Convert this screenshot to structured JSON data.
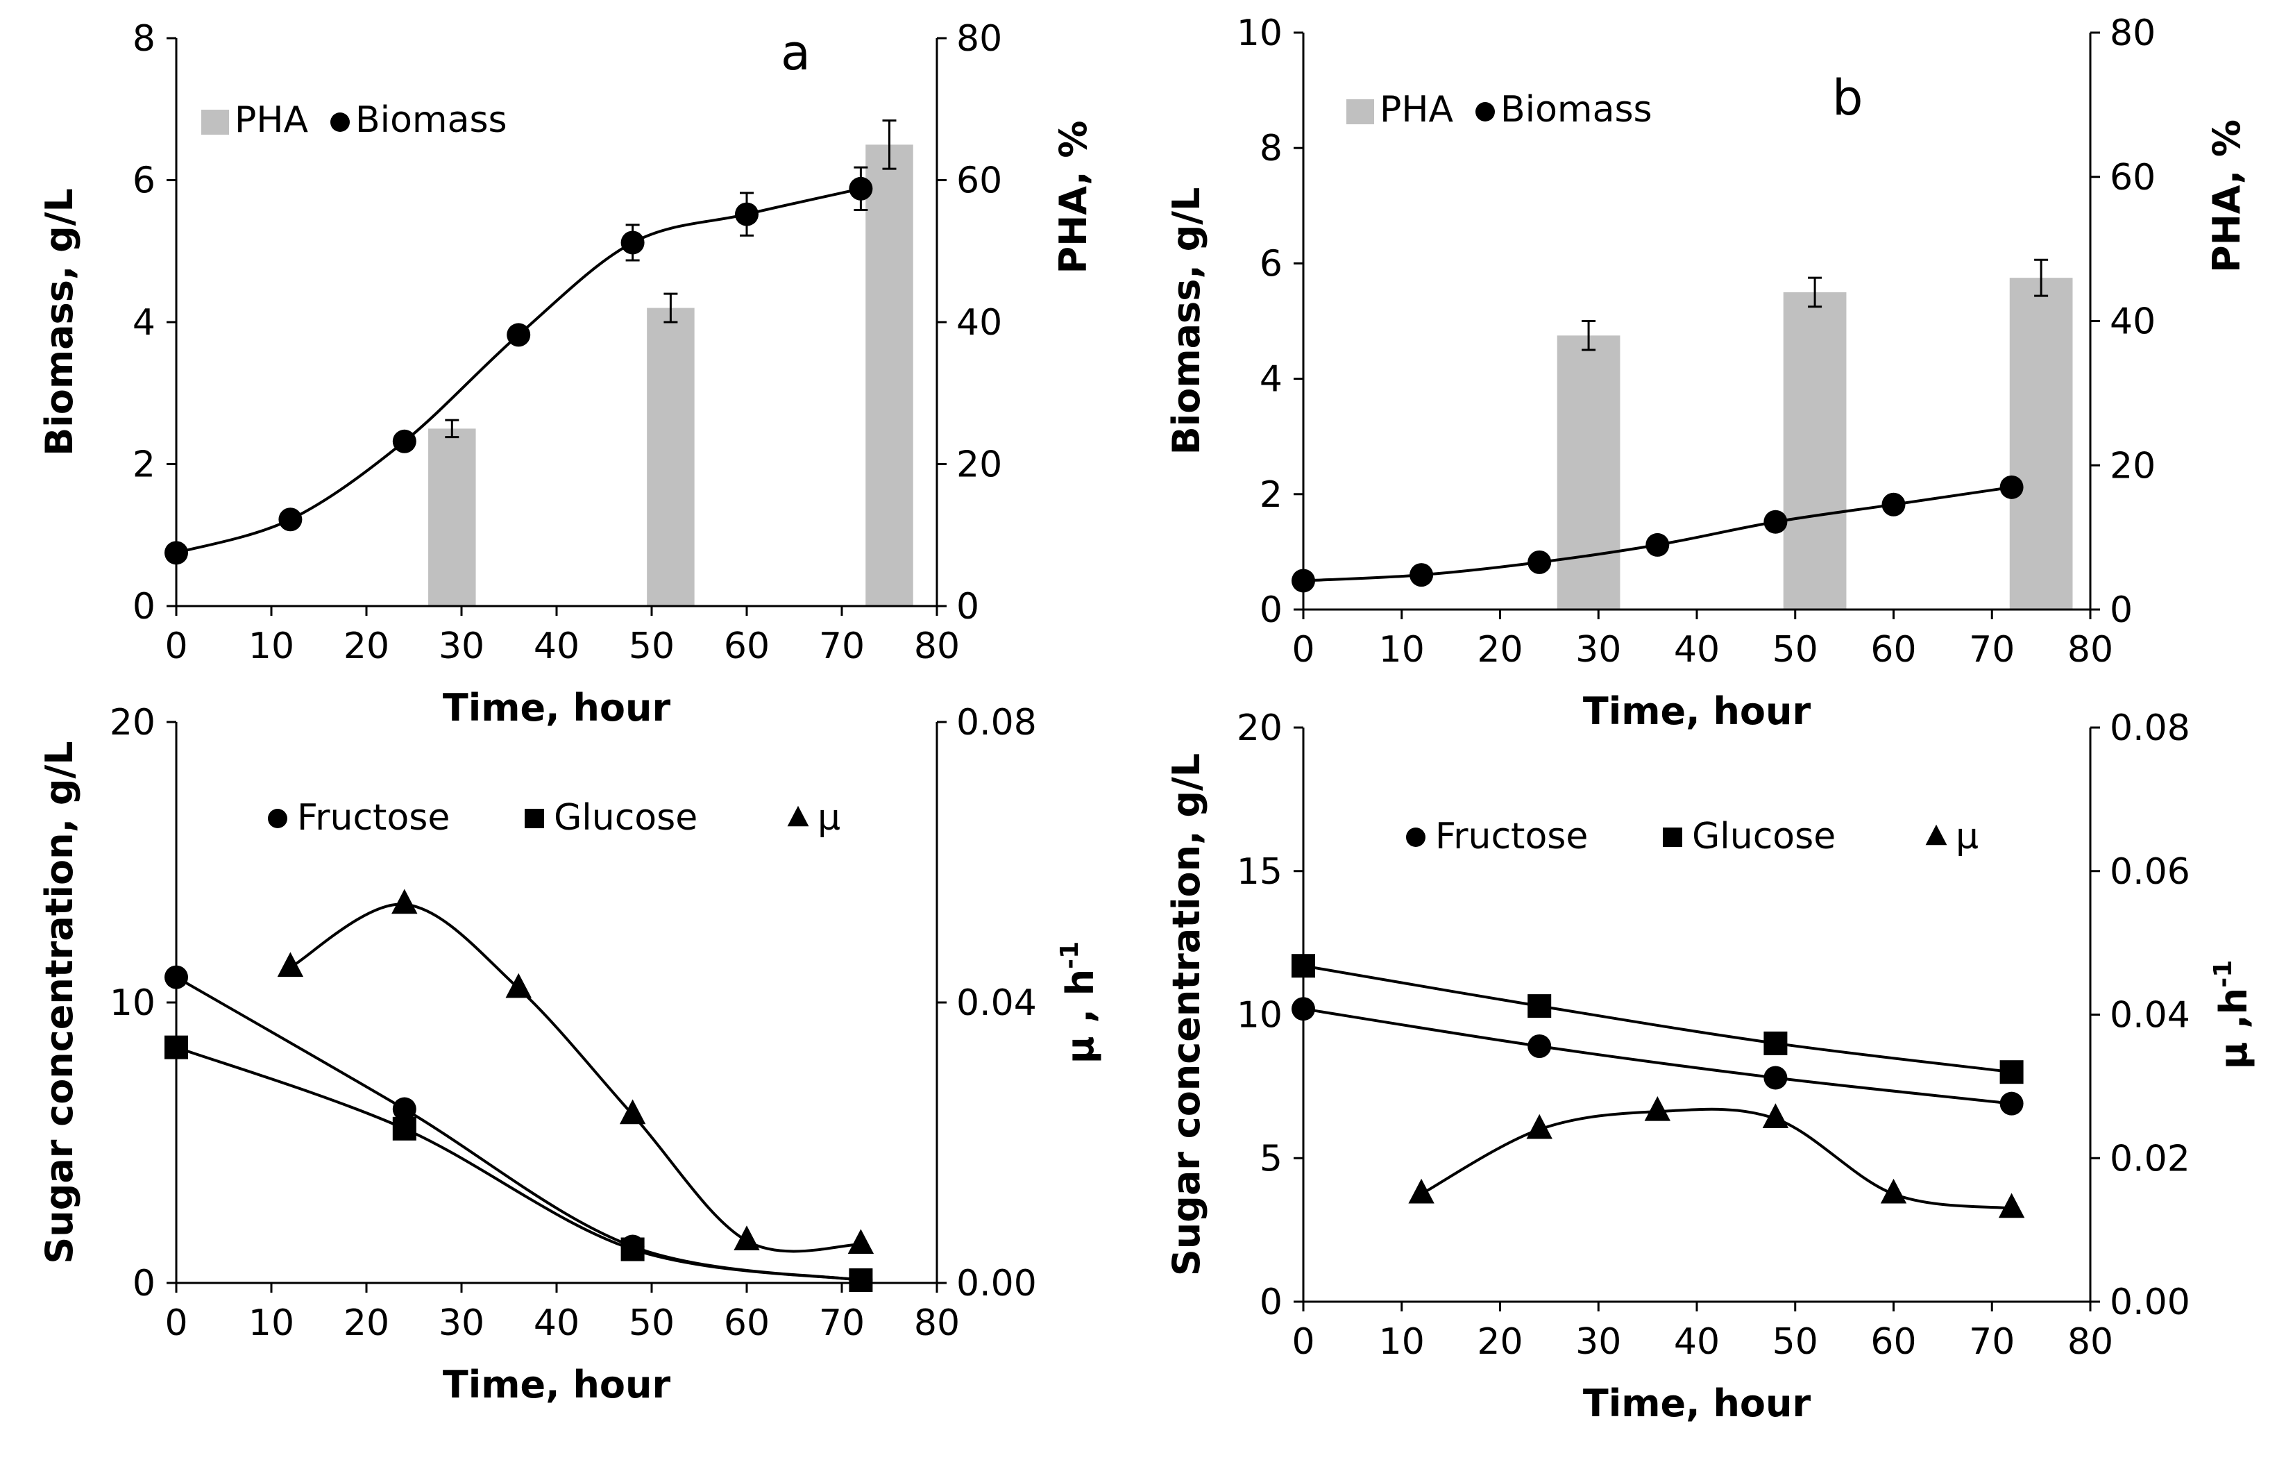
{
  "chart_data": [
    {
      "id": "a-top",
      "type": "bar+line",
      "panel_letter": "a",
      "xlabel": "Time, hour",
      "ylabel": "Biomass, g/L",
      "y2label": "PHA, %",
      "xlim": [
        0,
        80
      ],
      "ylim": [
        0,
        8
      ],
      "y2lim": [
        0,
        80
      ],
      "x_ticks": [
        0,
        10,
        20,
        30,
        40,
        50,
        60,
        70,
        80
      ],
      "y_ticks": [
        0,
        2,
        4,
        6,
        8
      ],
      "y2_ticks": [
        0,
        20,
        40,
        60,
        80
      ],
      "legend": {
        "bars": "PHA",
        "points": "Biomass"
      },
      "colors": {
        "bars": "#c0c0c0",
        "points": "#000000"
      },
      "bars": {
        "name": "PHA",
        "x": [
          29,
          52,
          75
        ],
        "values": [
          25,
          42,
          65
        ],
        "errors": [
          1.2,
          2,
          3.4
        ],
        "width": 5
      },
      "series": [
        {
          "name": "Biomass",
          "marker": "circle",
          "x": [
            0,
            12,
            24,
            36,
            48,
            60,
            72
          ],
          "values": [
            0.75,
            1.22,
            2.32,
            3.82,
            5.12,
            5.52,
            5.88
          ],
          "errors": [
            0,
            0,
            0,
            0,
            0.25,
            0.3,
            0.3
          ]
        }
      ]
    },
    {
      "id": "b-top",
      "type": "bar+line",
      "panel_letter": "b",
      "xlabel": "Time, hour",
      "ylabel": "Biomass, g/L",
      "y2label": "PHA, %",
      "xlim": [
        0,
        80
      ],
      "ylim": [
        0,
        10
      ],
      "y2lim": [
        0,
        80
      ],
      "x_ticks": [
        0,
        10,
        20,
        30,
        40,
        50,
        60,
        70,
        80
      ],
      "y_ticks": [
        0,
        2,
        4,
        6,
        8,
        10
      ],
      "y2_ticks": [
        0,
        20,
        40,
        60,
        80
      ],
      "legend": {
        "bars": "PHA",
        "points": "Biomass"
      },
      "colors": {
        "bars": "#c0c0c0",
        "points": "#000000"
      },
      "bars": {
        "name": "PHA",
        "x": [
          29,
          52,
          75
        ],
        "values": [
          38,
          44,
          46
        ],
        "errors": [
          2,
          2,
          2.5
        ],
        "width": 6.4
      },
      "series": [
        {
          "name": "Biomass",
          "marker": "circle",
          "x": [
            0,
            12,
            24,
            36,
            48,
            60,
            72
          ],
          "values": [
            0.5,
            0.6,
            0.82,
            1.12,
            1.52,
            1.82,
            2.12
          ],
          "errors": [
            0,
            0,
            0,
            0,
            0,
            0,
            0
          ]
        }
      ]
    },
    {
      "id": "a-bottom",
      "type": "scatter+line",
      "xlabel": "Time, hour",
      "ylabel": "Sugar concentration, g/L",
      "y2label_main": "μ , h",
      "y2label_sup": "-1",
      "xlim": [
        0,
        80
      ],
      "ylim": [
        0,
        20
      ],
      "y2lim": [
        0,
        0.08
      ],
      "x_ticks": [
        0,
        10,
        20,
        30,
        40,
        50,
        60,
        70,
        80
      ],
      "y_ticks": [
        0,
        10,
        20
      ],
      "y2_ticks": [
        "0.00",
        "0.04",
        "0.08"
      ],
      "legend": [
        "Fructose",
        "Glucose",
        "μ"
      ],
      "series": [
        {
          "name": "Fructose",
          "marker": "circle",
          "axis": "left",
          "x": [
            0,
            24,
            48,
            72
          ],
          "values": [
            10.9,
            6.2,
            1.3,
            0.1
          ]
        },
        {
          "name": "Glucose",
          "marker": "square",
          "axis": "left",
          "x": [
            0,
            24,
            48,
            72
          ],
          "values": [
            8.4,
            5.5,
            1.2,
            0.1
          ]
        },
        {
          "name": "μ",
          "marker": "triangle",
          "axis": "right",
          "x": [
            12,
            24,
            36,
            48,
            60,
            72
          ],
          "values": [
            0.045,
            0.054,
            0.042,
            0.024,
            0.006,
            0.0055
          ]
        }
      ]
    },
    {
      "id": "b-bottom",
      "type": "scatter+line",
      "xlabel": "Time, hour",
      "ylabel": "Sugar concentration, g/L",
      "y2label_main": "μ ,h",
      "y2label_sup": "-1",
      "xlim": [
        0,
        80
      ],
      "ylim": [
        0,
        20
      ],
      "y2lim": [
        0,
        0.08
      ],
      "x_ticks": [
        0,
        10,
        20,
        30,
        40,
        50,
        60,
        70,
        80
      ],
      "y_ticks": [
        0,
        5,
        10,
        15,
        20
      ],
      "y2_ticks": [
        "0.00",
        "0.02",
        "0.04",
        "0.06",
        "0.08"
      ],
      "legend": [
        "Fructose",
        "Glucose",
        "μ"
      ],
      "series": [
        {
          "name": "Fructose",
          "marker": "circle",
          "axis": "left",
          "x": [
            0,
            24,
            48,
            72
          ],
          "values": [
            10.2,
            8.9,
            7.8,
            6.9
          ]
        },
        {
          "name": "Glucose",
          "marker": "square",
          "axis": "left",
          "x": [
            0,
            24,
            48,
            72
          ],
          "values": [
            11.7,
            10.3,
            9.0,
            8.0
          ]
        },
        {
          "name": "μ",
          "marker": "triangle",
          "axis": "right",
          "x": [
            12,
            24,
            36,
            48,
            60,
            72
          ],
          "values": [
            0.015,
            0.024,
            0.0265,
            0.0255,
            0.015,
            0.013
          ]
        }
      ]
    }
  ]
}
